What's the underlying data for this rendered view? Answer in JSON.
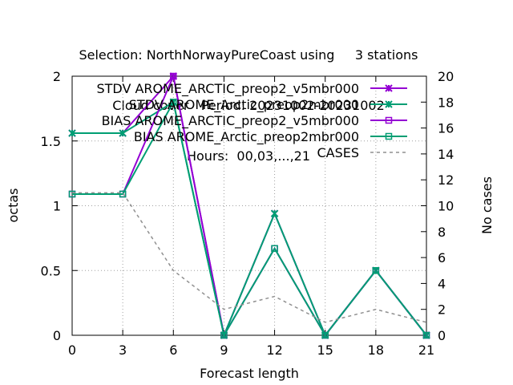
{
  "title_lines": [
    "Selection: NorthNorwayPureCoast using     3 stations",
    "Cloud cover   Period: 20231002-20231002",
    "Hours:  00,03,...,21"
  ],
  "chart_data": {
    "type": "line",
    "xlabel": "Forecast length",
    "ylabel": "octas",
    "y2label": "No cases",
    "xlim": [
      0,
      21
    ],
    "ylim": [
      0,
      2
    ],
    "y2lim": [
      0,
      20
    ],
    "x_ticks": [
      0,
      3,
      6,
      9,
      12,
      15,
      18,
      21
    ],
    "y_ticks": [
      0,
      0.5,
      1,
      1.5,
      2
    ],
    "y2_ticks": [
      0,
      2,
      4,
      6,
      8,
      10,
      12,
      14,
      16,
      18,
      20
    ],
    "grid": true,
    "legend_position": "top-right",
    "x": [
      0,
      3,
      6,
      9,
      12,
      15,
      18,
      21
    ],
    "series": [
      {
        "name": "STDV AROME_ARCTIC_preop2_v5mbr000",
        "axis": "y",
        "color": "#9400d3",
        "marker": "x",
        "dashed": false,
        "values": [
          1.56,
          1.56,
          2.0,
          0,
          0.94,
          0,
          0.5,
          0
        ]
      },
      {
        "name": "STDV AROME_Arctic_preop2mbr000",
        "axis": "y",
        "color": "#009e73",
        "marker": "x",
        "dashed": false,
        "values": [
          1.56,
          1.56,
          1.8,
          0,
          0.94,
          0,
          0.5,
          0
        ]
      },
      {
        "name": "BIAS AROME_ARCTIC_preop2_v5mbr000",
        "axis": "y",
        "color": "#9400d3",
        "marker": "square",
        "dashed": false,
        "values": [
          1.09,
          1.09,
          2.0,
          0,
          0.67,
          0,
          0.5,
          0
        ]
      },
      {
        "name": "BIAS AROME_Arctic_preop2mbr000",
        "axis": "y",
        "color": "#009e73",
        "marker": "square",
        "dashed": false,
        "values": [
          1.09,
          1.09,
          1.8,
          0,
          0.67,
          0,
          0.5,
          0
        ]
      },
      {
        "name": "CASES",
        "axis": "y2",
        "color": "#909090",
        "marker": "none",
        "dashed": true,
        "values": [
          11,
          11,
          5,
          2,
          3,
          1,
          2,
          1
        ]
      }
    ]
  }
}
